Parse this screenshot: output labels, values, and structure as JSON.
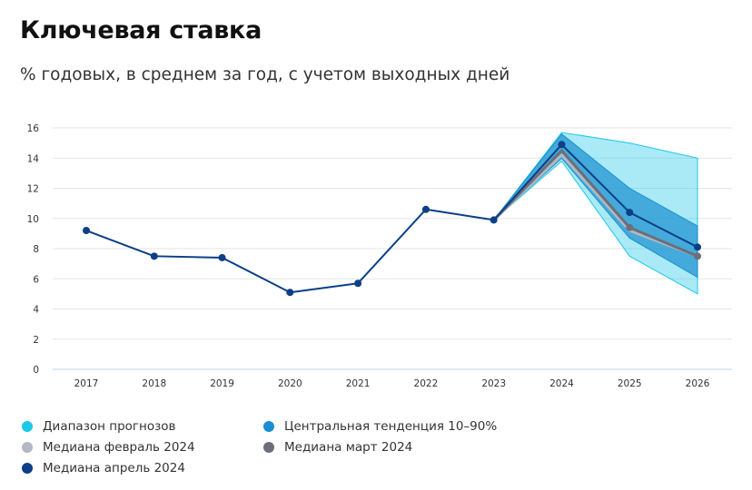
{
  "title": "Ключевая ставка",
  "subtitle": "% годовых, в среднем за год, с учетом выходных дней",
  "colors": {
    "range": "#1ec8e8",
    "central": "#1a8fd0",
    "feb": "#b3b8c2",
    "mar": "#6b6f7a",
    "apr": "#0b3f86",
    "grid": "#e6e6e6",
    "axis": "#bcd6e6"
  },
  "legend": [
    {
      "label": "Диапазон прогнозов",
      "color": "#1ec8e8"
    },
    {
      "label": "Центральная тенденция 10–90%",
      "color": "#1a8fd0"
    },
    {
      "label": "Медиана февраль 2024",
      "color": "#b3b8c2"
    },
    {
      "label": "Медиана март 2024",
      "color": "#6b6f7a"
    },
    {
      "label": "Медиана апрель 2024",
      "color": "#0b3f86"
    }
  ],
  "chart_data": {
    "type": "line",
    "title": "Ключевая ставка",
    "subtitle": "% годовых, в среднем за год, с учетом выходных дней",
    "categories": [
      "2017",
      "2018",
      "2019",
      "2020",
      "2021",
      "2022",
      "2023",
      "2024",
      "2025",
      "2026"
    ],
    "ylim": [
      0,
      16
    ],
    "yticks": [
      0,
      2,
      4,
      6,
      8,
      10,
      12,
      14,
      16
    ],
    "grid": true,
    "legend_position": "bottom",
    "series": [
      {
        "name": "Медиана апрель 2024",
        "values": [
          9.2,
          7.5,
          7.4,
          5.1,
          5.7,
          10.6,
          9.9,
          14.9,
          10.4,
          8.1
        ]
      },
      {
        "name": "Медиана март 2024",
        "values": [
          null,
          null,
          null,
          null,
          null,
          null,
          9.9,
          14.5,
          9.4,
          7.5
        ]
      },
      {
        "name": "Медиана февраль 2024",
        "values": [
          null,
          null,
          null,
          null,
          null,
          null,
          9.9,
          14.2,
          9.2,
          7.5
        ]
      }
    ],
    "bands": [
      {
        "name": "Диапазон прогнозов",
        "x": [
          "2023",
          "2024",
          "2025",
          "2026"
        ],
        "low": [
          9.9,
          13.8,
          7.5,
          5.0
        ],
        "high": [
          9.9,
          15.7,
          15.0,
          14.0
        ]
      },
      {
        "name": "Центральная тенденция 10–90%",
        "x": [
          "2023",
          "2024",
          "2025",
          "2026"
        ],
        "low": [
          9.9,
          14.0,
          8.7,
          6.1
        ],
        "high": [
          9.9,
          15.6,
          12.0,
          9.5
        ]
      }
    ]
  }
}
